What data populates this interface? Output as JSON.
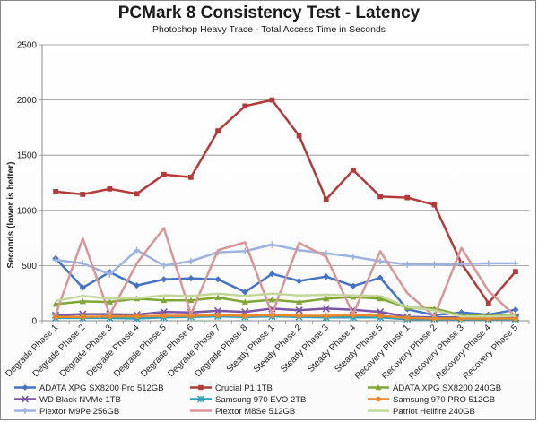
{
  "chart_data": {
    "type": "line",
    "title": "PCMark 8 Consistency Test - Latency",
    "subtitle": "Photoshop Heavy Trace - Total Access Time in Seconds",
    "ylabel": "Seconds (lower is better)",
    "xlabel": "",
    "ylim": [
      0,
      2500
    ],
    "yticks": [
      0,
      500,
      1000,
      1500,
      2000,
      2500
    ],
    "grid": true,
    "legend_position": "bottom",
    "categories": [
      "Degrade Phase 1",
      "Degrade Phase 2",
      "Degrade Phase 3",
      "Degrade Phase 4",
      "Degrade Phase 5",
      "Degrade Phase 6",
      "Degrade Phase 7",
      "Degrade Phase 8",
      "Steady Phase 1",
      "Steady Phase 2",
      "Steady Phase 3",
      "Steady Phase 4",
      "Steady Phase 5",
      "Recovery Phase 1",
      "Recovery Phase 2",
      "Recovery Phase 3",
      "Recovery Phase 4",
      "Recovery Phase 5"
    ],
    "series": [
      {
        "name": "ADATA XPG SX8200 Pro 512GB",
        "color": "#4472c4",
        "marker": "diamond",
        "values": [
          565,
          300,
          440,
          320,
          375,
          385,
          375,
          260,
          425,
          360,
          400,
          315,
          390,
          105,
          50,
          75,
          55,
          100
        ]
      },
      {
        "name": "Crucial P1 1TB",
        "color": "#b23a3a",
        "marker": "square",
        "values": [
          1170,
          1145,
          1195,
          1150,
          1325,
          1300,
          1720,
          1945,
          2000,
          1675,
          1100,
          1365,
          1125,
          1115,
          1050,
          520,
          160,
          445
        ]
      },
      {
        "name": "ADATA XPG SX8200 240GB",
        "color": "#7fa736",
        "marker": "triangle",
        "values": [
          150,
          175,
          170,
          200,
          185,
          185,
          210,
          170,
          190,
          170,
          200,
          215,
          200,
          120,
          110,
          50,
          50,
          55
        ]
      },
      {
        "name": "WD Black NVMe 1TB",
        "color": "#7a57a6",
        "marker": "x",
        "values": [
          50,
          60,
          60,
          55,
          80,
          75,
          90,
          80,
          110,
          95,
          110,
          100,
          80,
          35,
          30,
          30,
          30,
          30
        ]
      },
      {
        "name": "Samsung 970 EVO 2TB",
        "color": "#2d9fb8",
        "marker": "star",
        "values": [
          25,
          25,
          25,
          20,
          30,
          35,
          40,
          35,
          40,
          35,
          30,
          30,
          30,
          15,
          15,
          15,
          15,
          15
        ]
      },
      {
        "name": "Samsung 970 PRO 512GB",
        "color": "#e8892c",
        "marker": "circle",
        "values": [
          35,
          35,
          40,
          40,
          45,
          45,
          50,
          45,
          50,
          45,
          45,
          50,
          45,
          25,
          20,
          20,
          20,
          20
        ]
      },
      {
        "name": "Plextor M9Pe 256GB",
        "color": "#9bb3de",
        "marker": "plus",
        "values": [
          550,
          520,
          420,
          640,
          500,
          540,
          620,
          630,
          690,
          640,
          610,
          580,
          540,
          510,
          510,
          515,
          520,
          520
        ]
      },
      {
        "name": "Plextor M8Se 512GB",
        "color": "#d99595",
        "marker": "none",
        "values": [
          55,
          745,
          55,
          520,
          840,
          60,
          640,
          710,
          60,
          705,
          580,
          60,
          630,
          250,
          40,
          660,
          270,
          40
        ]
      },
      {
        "name": "Patriot Hellfire 240GB",
        "color": "#c4d79b",
        "marker": "none",
        "values": [
          180,
          225,
          200,
          205,
          230,
          225,
          245,
          225,
          245,
          230,
          235,
          230,
          225,
          125,
          95,
          40,
          40,
          45
        ]
      }
    ]
  }
}
